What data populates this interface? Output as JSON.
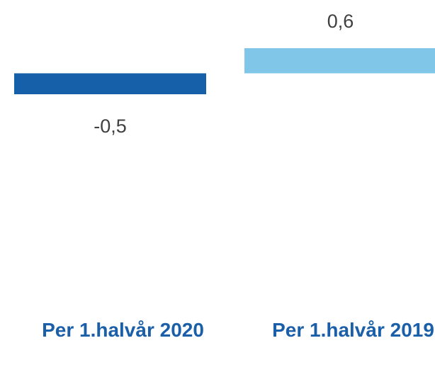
{
  "chart_data": {
    "type": "bar",
    "categories": [
      "Per 1.halvår 2020",
      "Per 1.halvår 2019"
    ],
    "values": [
      -0.5,
      0.6
    ],
    "value_labels": [
      "-0,5",
      "0,6"
    ],
    "colors": [
      "#1560a8",
      "#7fc6e8"
    ],
    "ylim": [
      -0.5,
      0.6
    ]
  }
}
